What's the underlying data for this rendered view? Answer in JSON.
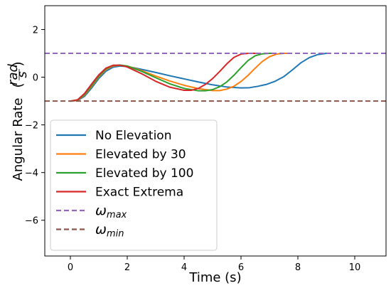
{
  "chart_data": {
    "type": "line",
    "title": "",
    "xlabel": "Time (s)",
    "ylabel": "Angular Rate",
    "ylabel_unit": {
      "numerator": "rad",
      "denominator": "s"
    },
    "xlim": [
      -0.9,
      11.1
    ],
    "ylim": [
      -7.5,
      3.0
    ],
    "xticks": [
      0,
      2,
      4,
      6,
      8,
      10
    ],
    "yticks": [
      -6,
      -4,
      -2,
      0,
      2
    ],
    "grid": false,
    "legend_position": "lower-left",
    "series": [
      {
        "name": "No Elevation",
        "color": "#1f77b4",
        "style": "solid",
        "x": [
          0.0,
          0.25,
          0.5,
          0.75,
          1.0,
          1.25,
          1.5,
          1.75,
          2.0,
          2.5,
          3.0,
          3.5,
          4.0,
          4.5,
          5.0,
          5.5,
          6.0,
          6.3,
          6.6,
          6.9,
          7.2,
          7.5,
          7.8,
          8.1,
          8.4,
          8.7,
          9.0,
          9.15
        ],
        "y": [
          -1.0,
          -0.98,
          -0.8,
          -0.45,
          -0.05,
          0.25,
          0.42,
          0.47,
          0.45,
          0.33,
          0.2,
          0.06,
          -0.07,
          -0.2,
          -0.32,
          -0.41,
          -0.45,
          -0.44,
          -0.38,
          -0.3,
          -0.17,
          0.02,
          0.3,
          0.6,
          0.82,
          0.95,
          1.0,
          1.0
        ]
      },
      {
        "name": "Elevated by 30",
        "color": "#ff7f0e",
        "style": "solid",
        "x": [
          0.0,
          0.25,
          0.5,
          0.75,
          1.0,
          1.25,
          1.5,
          1.75,
          2.0,
          2.5,
          3.0,
          3.5,
          4.0,
          4.5,
          5.0,
          5.25,
          5.5,
          5.75,
          6.0,
          6.25,
          6.5,
          6.75,
          7.0,
          7.25,
          7.5,
          7.65
        ],
        "y": [
          -1.0,
          -0.97,
          -0.75,
          -0.38,
          0.02,
          0.32,
          0.47,
          0.5,
          0.47,
          0.28,
          0.05,
          -0.16,
          -0.34,
          -0.48,
          -0.56,
          -0.56,
          -0.5,
          -0.38,
          -0.18,
          0.08,
          0.38,
          0.66,
          0.86,
          0.97,
          1.0,
          1.0
        ]
      },
      {
        "name": "Elevated by 100",
        "color": "#2ca02c",
        "style": "solid",
        "x": [
          0.0,
          0.25,
          0.5,
          0.75,
          1.0,
          1.25,
          1.5,
          1.75,
          2.0,
          2.5,
          3.0,
          3.5,
          4.0,
          4.5,
          4.75,
          5.0,
          5.25,
          5.5,
          5.75,
          6.0,
          6.25,
          6.5,
          6.75,
          7.0,
          7.15
        ],
        "y": [
          -1.0,
          -0.96,
          -0.72,
          -0.34,
          0.05,
          0.35,
          0.49,
          0.51,
          0.47,
          0.25,
          -0.02,
          -0.28,
          -0.47,
          -0.57,
          -0.57,
          -0.52,
          -0.4,
          -0.2,
          0.08,
          0.4,
          0.7,
          0.9,
          0.98,
          1.0,
          1.0
        ]
      },
      {
        "name": "Exact Extrema",
        "color": "#d62728",
        "style": "solid",
        "x": [
          0.0,
          0.25,
          0.5,
          0.75,
          1.0,
          1.25,
          1.5,
          1.75,
          2.0,
          2.5,
          3.0,
          3.5,
          4.0,
          4.25,
          4.5,
          4.75,
          5.0,
          5.25,
          5.5,
          5.75,
          6.0,
          6.25,
          6.5
        ],
        "y": [
          -1.0,
          -0.95,
          -0.68,
          -0.28,
          0.1,
          0.38,
          0.5,
          0.5,
          0.43,
          0.15,
          -0.17,
          -0.42,
          -0.55,
          -0.55,
          -0.47,
          -0.3,
          -0.06,
          0.24,
          0.56,
          0.83,
          0.97,
          1.0,
          1.0
        ]
      },
      {
        "name": "ω_max",
        "label_main": "ω",
        "label_sub": "max",
        "color": "#9467bd",
        "style": "dashed",
        "x": [
          -0.9,
          11.1
        ],
        "y": [
          1.0,
          1.0
        ]
      },
      {
        "name": "ω_min",
        "label_main": "ω",
        "label_sub": "min",
        "color": "#8c564b",
        "style": "dashed",
        "x": [
          -0.9,
          11.1
        ],
        "y": [
          -1.0,
          -1.0
        ]
      }
    ]
  }
}
